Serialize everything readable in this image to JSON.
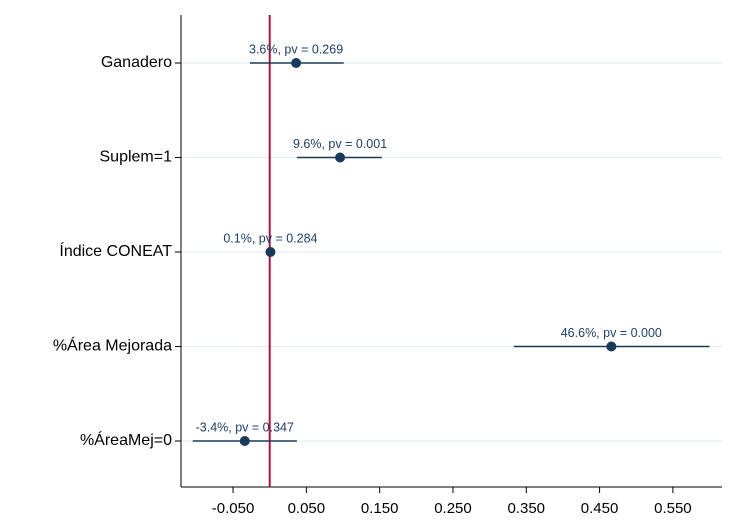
{
  "chart_data": {
    "type": "coefplot",
    "categories": [
      "Ganadero",
      "Suplem=1",
      "Índice CONEAT",
      "%Área Mejorada",
      "%ÁreaMej=0"
    ],
    "values": [
      0.036,
      0.096,
      0.001,
      0.466,
      -0.034
    ],
    "ci_low": [
      -0.027,
      0.037,
      0.0,
      0.333,
      -0.105
    ],
    "ci_high": [
      0.101,
      0.153,
      0.002,
      0.6,
      0.037
    ],
    "value_labels": [
      "3.6%, pv = 0.269",
      "9.6%, pv = 0.001",
      "0.1%, pv = 0.284",
      "46.6%, pv = 0.000",
      "-3.4%, pv = 0.347"
    ],
    "color": "#1a3a5c",
    "xline": 0,
    "xline_color": "#b0103a",
    "xlim": [
      -0.121,
      0.617
    ],
    "xticks": [
      {
        "value": -0.05,
        "label": "-0.050"
      },
      {
        "value": 0.05,
        "label": "0.050"
      },
      {
        "value": 0.15,
        "label": "0.150"
      },
      {
        "value": 0.25,
        "label": "0.250"
      },
      {
        "value": 0.35,
        "label": "0.350"
      },
      {
        "value": 0.45,
        "label": "0.450"
      },
      {
        "value": 0.55,
        "label": "0.550"
      }
    ],
    "grid": true
  }
}
